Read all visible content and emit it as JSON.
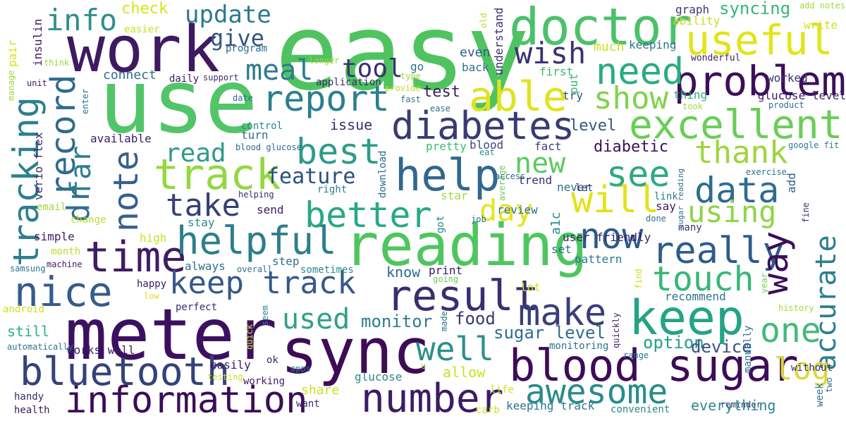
{
  "words": [
    {
      "text": "easy",
      "color": "#4fc35f"
    },
    {
      "text": "use",
      "color": "#52c569"
    },
    {
      "text": "work",
      "color": "#3f1a60"
    },
    {
      "text": "meter",
      "color": "#3c1060"
    },
    {
      "text": "doctor",
      "color": "#4bc16b"
    },
    {
      "text": "useful",
      "color": "#e2e418"
    },
    {
      "text": "sync",
      "color": "#3e0b56"
    },
    {
      "text": "reading",
      "color": "#4ec65f"
    },
    {
      "text": "blood sugar",
      "color": "#3d0c57"
    },
    {
      "text": "information",
      "color": "#3c0c58"
    },
    {
      "text": "bluetooth",
      "color": "#35427a"
    },
    {
      "text": "keep",
      "color": "#25a387"
    },
    {
      "text": "help",
      "color": "#31678f"
    },
    {
      "text": "diabetes",
      "color": "#3a3a73"
    },
    {
      "text": "problem",
      "color": "#3e0e5a"
    },
    {
      "text": "excellent",
      "color": "#6acd58"
    },
    {
      "text": "track",
      "color": "#94d841"
    },
    {
      "text": "able",
      "color": "#e0e320"
    },
    {
      "text": "need",
      "color": "#29ac80"
    },
    {
      "text": "record",
      "color": "#2f6b8d"
    },
    {
      "text": "tracking",
      "color": "#2d7f8e"
    },
    {
      "text": "time",
      "color": "#3f1c65"
    },
    {
      "text": "nice",
      "color": "#355c8c"
    },
    {
      "text": "helpful",
      "color": "#2c7e8e"
    },
    {
      "text": "result",
      "color": "#3b2d70"
    },
    {
      "text": "really",
      "color": "#2d5c8a"
    },
    {
      "text": "way",
      "color": "#3c0d5a"
    },
    {
      "text": "accurate",
      "color": "#2c7e8e"
    },
    {
      "text": "touch",
      "color": "#37b778"
    },
    {
      "text": "make",
      "color": "#3a3e79"
    },
    {
      "text": "awesome",
      "color": "#2a8b8c"
    },
    {
      "text": "number",
      "color": "#3c1c63"
    },
    {
      "text": "log",
      "color": "#ddd83a"
    },
    {
      "text": "one",
      "color": "#42b97a"
    },
    {
      "text": "well",
      "color": "#2b8f8b"
    },
    {
      "text": "now",
      "color": "#2c5a8b"
    },
    {
      "text": "better",
      "color": "#29a884"
    },
    {
      "text": "best",
      "color": "#2c9c89"
    },
    {
      "text": "will",
      "color": "#e1e318"
    },
    {
      "text": "see",
      "color": "#2ca985"
    },
    {
      "text": "data",
      "color": "#2e6c8e"
    },
    {
      "text": "thank",
      "color": "#9cd63b"
    },
    {
      "text": "using",
      "color": "#8dd545"
    },
    {
      "text": "day",
      "color": "#e6e41f"
    },
    {
      "text": "wish",
      "color": "#3a3272"
    },
    {
      "text": "show",
      "color": "#80d34c"
    },
    {
      "text": "report",
      "color": "#2a7f8e"
    },
    {
      "text": "meal",
      "color": "#2d7b8e"
    },
    {
      "text": "note",
      "color": "#355f8d"
    },
    {
      "text": "take",
      "color": "#353f79"
    },
    {
      "text": "dr",
      "color": "#2e6f8e"
    },
    {
      "text": "far",
      "color": "#2b7c8e"
    },
    {
      "text": "info",
      "color": "#2e908c"
    },
    {
      "text": "update",
      "color": "#2a7a8e"
    },
    {
      "text": "give",
      "color": "#34557f"
    },
    {
      "text": "tool",
      "color": "#3a3073"
    },
    {
      "text": "feature",
      "color": "#2a4f80"
    },
    {
      "text": "read",
      "color": "#2f9b87"
    },
    {
      "text": "new",
      "color": "#5ec962"
    },
    {
      "text": "used",
      "color": "#2ea185"
    },
    {
      "text": "keep track",
      "color": "#365989"
    },
    {
      "text": "monitor",
      "color": "#2b7b8e"
    },
    {
      "text": "food",
      "color": "#3a3772"
    },
    {
      "text": "sugar level",
      "color": "#2e6d8e"
    },
    {
      "text": "option",
      "color": "#22a088"
    },
    {
      "text": "device",
      "color": "#3b4f86"
    },
    {
      "text": "check",
      "color": "#d9e41a"
    },
    {
      "text": "syncing",
      "color": "#34b679"
    },
    {
      "text": "graph",
      "color": "#3a3a73"
    },
    {
      "text": "ability",
      "color": "#c8e020"
    },
    {
      "text": "write",
      "color": "#d0e11c"
    },
    {
      "text": "add notes",
      "color": "#a5db36"
    },
    {
      "text": "wonderful",
      "color": "#3f1e66"
    },
    {
      "text": "worked",
      "color": "#3a3174"
    },
    {
      "text": "keeping",
      "color": "#2c728e"
    },
    {
      "text": "much",
      "color": "#c9e021"
    },
    {
      "text": "first",
      "color": "#3db47a"
    },
    {
      "text": "even",
      "color": "#2a5f8c"
    },
    {
      "text": "back",
      "color": "#2d718e"
    },
    {
      "text": "understand",
      "color": "#3a2f70"
    },
    {
      "text": "thing",
      "color": "#2cb17e"
    },
    {
      "text": "took",
      "color": "#a0da39"
    },
    {
      "text": "glucose level",
      "color": "#3b1c66"
    },
    {
      "text": "product",
      "color": "#2e6f8e"
    },
    {
      "text": "try",
      "color": "#2e4f80"
    },
    {
      "text": "put",
      "color": "#35b779"
    },
    {
      "text": "test",
      "color": "#3c1d64"
    },
    {
      "text": "issue",
      "color": "#3b2c6e"
    },
    {
      "text": "level",
      "color": "#33567f"
    },
    {
      "text": "diabetic",
      "color": "#3d0f5c"
    },
    {
      "text": "fact",
      "color": "#3a3f7b"
    },
    {
      "text": "blood",
      "color": "#414487"
    },
    {
      "text": "pretty",
      "color": "#3bbb75"
    },
    {
      "text": "eat",
      "color": "#2c8a8c"
    },
    {
      "text": "average",
      "color": "#67cc5c"
    },
    {
      "text": "trend",
      "color": "#3b2e71"
    },
    {
      "text": "never",
      "color": "#2e6c8e"
    },
    {
      "text": "let",
      "color": "#3a3a73"
    },
    {
      "text": "link",
      "color": "#2c7c8e"
    },
    {
      "text": "say",
      "color": "#3c1f65"
    },
    {
      "text": "google fit",
      "color": "#2b7d8e"
    },
    {
      "text": "exercise",
      "color": "#2c738e"
    },
    {
      "text": "add",
      "color": "#2a5f8c"
    },
    {
      "text": "fine",
      "color": "#3a3173"
    },
    {
      "text": "year",
      "color": "#6fcf57"
    },
    {
      "text": "history",
      "color": "#a4d939"
    },
    {
      "text": "recommend",
      "color": "#2c738e"
    },
    {
      "text": "many",
      "color": "#3b2f71"
    },
    {
      "text": "done",
      "color": "#2d718e"
    },
    {
      "text": "sugar reading",
      "color": "#2d718e"
    },
    {
      "text": "find",
      "color": "#c8e020"
    },
    {
      "text": "review",
      "color": "#2d718e"
    },
    {
      "text": "user friendly",
      "color": "#3b1c64"
    },
    {
      "text": "a1c",
      "color": "#2a8b8c"
    },
    {
      "text": "set",
      "color": "#2e6c8e"
    },
    {
      "text": "pattern",
      "color": "#2a788e"
    },
    {
      "text": "lot",
      "color": "#d7e219"
    },
    {
      "text": "know",
      "color": "#2c688e"
    },
    {
      "text": "print",
      "color": "#3b1c62"
    },
    {
      "text": "going",
      "color": "#67cc5c"
    },
    {
      "text": "star",
      "color": "#9fd938"
    },
    {
      "text": "job",
      "color": "#2d718e"
    },
    {
      "text": "got",
      "color": "#2a878c"
    },
    {
      "text": "download",
      "color": "#2d6a8e"
    },
    {
      "text": "right",
      "color": "#2a7f8e"
    },
    {
      "text": "access",
      "color": "#2c6e8e"
    },
    {
      "text": "send",
      "color": "#3b1c63"
    },
    {
      "text": "helping",
      "color": "#3b2e70"
    },
    {
      "text": "stay",
      "color": "#2a878c"
    },
    {
      "text": "high",
      "color": "#cbe11f"
    },
    {
      "text": "available",
      "color": "#3c1c63"
    },
    {
      "text": "turn",
      "color": "#2d718e"
    },
    {
      "text": "control",
      "color": "#2a878c"
    },
    {
      "text": "blood glucose",
      "color": "#2d6a8e"
    },
    {
      "text": "connect",
      "color": "#2d718e"
    },
    {
      "text": "daily",
      "color": "#3b1c63"
    },
    {
      "text": "support",
      "color": "#3b2e70"
    },
    {
      "text": "program",
      "color": "#2d6a8e"
    },
    {
      "text": "go",
      "color": "#2c738e"
    },
    {
      "text": "application",
      "color": "#3b2c6e"
    },
    {
      "text": "type",
      "color": "#9fd938"
    },
    {
      "text": "provide",
      "color": "#b9de2a"
    },
    {
      "text": "fast",
      "color": "#2c738e"
    },
    {
      "text": "ease",
      "color": "#2d718e"
    },
    {
      "text": "date",
      "color": "#2e6c8e"
    },
    {
      "text": "longer",
      "color": "#9fd938"
    },
    {
      "text": "old",
      "color": "#b9de2a"
    },
    {
      "text": "easier",
      "color": "#cbe11f"
    },
    {
      "text": "insulin",
      "color": "#3b1c63"
    },
    {
      "text": "pair",
      "color": "#d7e219"
    },
    {
      "text": "manage",
      "color": "#9fd938"
    },
    {
      "text": "think",
      "color": "#9fd938"
    },
    {
      "text": "unit",
      "color": "#3b1c63"
    },
    {
      "text": "enter",
      "color": "#2c738e"
    },
    {
      "text": "verio flex",
      "color": "#3b2c6e"
    },
    {
      "text": "email",
      "color": "#9fd938"
    },
    {
      "text": "change",
      "color": "#b9de2a"
    },
    {
      "text": "simple",
      "color": "#3b1c63"
    },
    {
      "text": "month",
      "color": "#b9de2a"
    },
    {
      "text": "machine",
      "color": "#3b1c63"
    },
    {
      "text": "samsung",
      "color": "#2c738e"
    },
    {
      "text": "always",
      "color": "#2d718e"
    },
    {
      "text": "step",
      "color": "#2d718e"
    },
    {
      "text": "sometimes",
      "color": "#2a878c"
    },
    {
      "text": "overall",
      "color": "#2c738e"
    },
    {
      "text": "happy",
      "color": "#3b1c63"
    },
    {
      "text": "low",
      "color": "#d7e219"
    },
    {
      "text": "perfect",
      "color": "#3b2c6e"
    },
    {
      "text": "seem",
      "color": "#2a878c"
    },
    {
      "text": "android",
      "color": "#cbe11f"
    },
    {
      "text": "still",
      "color": "#2cb17e"
    },
    {
      "text": "works well",
      "color": "#3b1c63"
    },
    {
      "text": "automatically",
      "color": "#2c738e"
    },
    {
      "text": "quick",
      "color": "#cbe11f"
    },
    {
      "text": "easily",
      "color": "#3b1c63"
    },
    {
      "text": "ok",
      "color": "#3b2c6e"
    },
    {
      "text": "apps",
      "color": "#2c738e"
    },
    {
      "text": "testing",
      "color": "#cbe11f"
    },
    {
      "text": "working",
      "color": "#3b1c63"
    },
    {
      "text": "handy",
      "color": "#3b2c6e"
    },
    {
      "text": "health",
      "color": "#3b1c63"
    },
    {
      "text": "want",
      "color": "#3b2c6e"
    },
    {
      "text": "share",
      "color": "#cbe11f"
    },
    {
      "text": "glucose",
      "color": "#2a878c"
    },
    {
      "text": "allow",
      "color": "#cbe11f"
    },
    {
      "text": "made",
      "color": "#2c738e"
    },
    {
      "text": "u",
      "color": "#9fd938"
    },
    {
      "text": "life",
      "color": "#cbe11f"
    },
    {
      "text": "carb",
      "color": "#cbe11f"
    },
    {
      "text": "keeping track",
      "color": "#2c738e"
    },
    {
      "text": "convenient",
      "color": "#2a878c"
    },
    {
      "text": "monitoring",
      "color": "#2c738e"
    },
    {
      "text": "quickly",
      "color": "#3b1c63"
    },
    {
      "text": "range",
      "color": "#2d718e"
    },
    {
      "text": "manually",
      "color": "#2d718e"
    },
    {
      "text": "reminder",
      "color": "#3b2c6e"
    },
    {
      "text": "everything",
      "color": "#2a878c"
    },
    {
      "text": "week",
      "color": "#2c738e"
    },
    {
      "text": "two",
      "color": "#2d718e"
    },
    {
      "text": "without",
      "color": "#3b2c6e"
    }
  ]
}
